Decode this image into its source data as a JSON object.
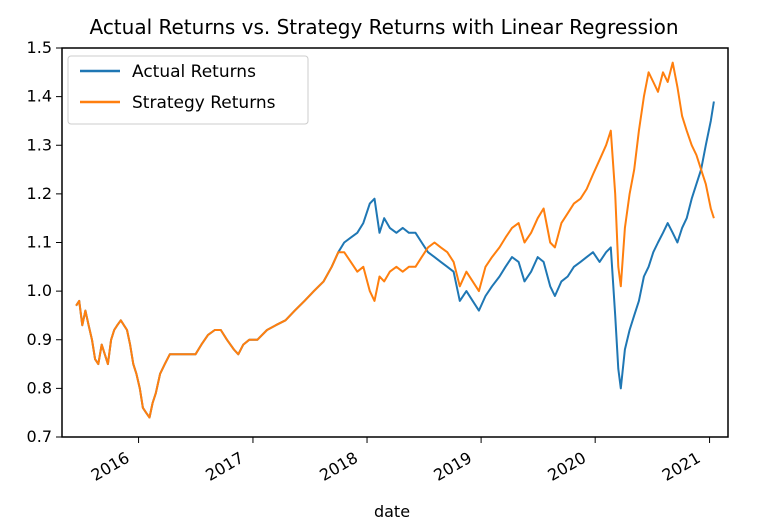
{
  "chart_data": {
    "type": "line",
    "title": "Actual Returns vs. Strategy Returns with Linear Regression",
    "xlabel": "date",
    "ylabel": "",
    "ylim": [
      0.7,
      1.5
    ],
    "xlim": [
      "2015-05-01",
      "2021-03-01"
    ],
    "y_ticks": [
      0.7,
      0.8,
      0.9,
      1.0,
      1.1,
      1.2,
      1.3,
      1.4,
      1.5
    ],
    "x_ticks": [
      {
        "label": "2016",
        "date": "2016-01-01"
      },
      {
        "label": "2017",
        "date": "2017-01-01"
      },
      {
        "label": "2018",
        "date": "2018-01-01"
      },
      {
        "label": "2019",
        "date": "2019-01-01"
      },
      {
        "label": "2020",
        "date": "2020-01-01"
      },
      {
        "label": "2021",
        "date": "2021-01-01"
      }
    ],
    "grid": false,
    "legend": "upper-left",
    "series": [
      {
        "name": "Actual Returns",
        "color": "#1f77b4",
        "points": [
          [
            "2015-06-15",
            0.97
          ],
          [
            "2015-06-25",
            0.98
          ],
          [
            "2015-07-05",
            0.93
          ],
          [
            "2015-07-15",
            0.96
          ],
          [
            "2015-07-25",
            0.93
          ],
          [
            "2015-08-05",
            0.9
          ],
          [
            "2015-08-15",
            0.86
          ],
          [
            "2015-08-25",
            0.85
          ],
          [
            "2015-09-05",
            0.89
          ],
          [
            "2015-09-15",
            0.87
          ],
          [
            "2015-09-25",
            0.85
          ],
          [
            "2015-10-05",
            0.9
          ],
          [
            "2015-10-15",
            0.92
          ],
          [
            "2015-10-25",
            0.93
          ],
          [
            "2015-11-05",
            0.94
          ],
          [
            "2015-11-15",
            0.93
          ],
          [
            "2015-11-25",
            0.92
          ],
          [
            "2015-12-05",
            0.89
          ],
          [
            "2015-12-15",
            0.85
          ],
          [
            "2015-12-25",
            0.83
          ],
          [
            "2016-01-05",
            0.8
          ],
          [
            "2016-01-15",
            0.76
          ],
          [
            "2016-01-25",
            0.75
          ],
          [
            "2016-02-05",
            0.74
          ],
          [
            "2016-02-15",
            0.77
          ],
          [
            "2016-02-25",
            0.79
          ],
          [
            "2016-03-10",
            0.83
          ],
          [
            "2016-03-25",
            0.85
          ],
          [
            "2016-04-10",
            0.87
          ],
          [
            "2016-05-01",
            0.87
          ],
          [
            "2016-06-01",
            0.87
          ],
          [
            "2016-07-01",
            0.87
          ],
          [
            "2016-07-20",
            0.89
          ],
          [
            "2016-08-10",
            0.91
          ],
          [
            "2016-09-01",
            0.92
          ],
          [
            "2016-09-20",
            0.92
          ],
          [
            "2016-10-10",
            0.9
          ],
          [
            "2016-11-01",
            0.88
          ],
          [
            "2016-11-15",
            0.87
          ],
          [
            "2016-12-01",
            0.89
          ],
          [
            "2016-12-20",
            0.9
          ],
          [
            "2017-01-15",
            0.9
          ],
          [
            "2017-02-15",
            0.92
          ],
          [
            "2017-03-15",
            0.93
          ],
          [
            "2017-04-15",
            0.94
          ],
          [
            "2017-05-15",
            0.96
          ],
          [
            "2017-06-15",
            0.98
          ],
          [
            "2017-07-15",
            1.0
          ],
          [
            "2017-08-15",
            1.02
          ],
          [
            "2017-09-10",
            1.05
          ],
          [
            "2017-10-01",
            1.08
          ],
          [
            "2017-10-20",
            1.1
          ],
          [
            "2017-11-10",
            1.11
          ],
          [
            "2017-12-01",
            1.12
          ],
          [
            "2017-12-20",
            1.14
          ],
          [
            "2018-01-10",
            1.18
          ],
          [
            "2018-01-25",
            1.19
          ],
          [
            "2018-02-10",
            1.12
          ],
          [
            "2018-02-25",
            1.15
          ],
          [
            "2018-03-15",
            1.13
          ],
          [
            "2018-04-05",
            1.12
          ],
          [
            "2018-04-25",
            1.13
          ],
          [
            "2018-05-15",
            1.12
          ],
          [
            "2018-06-05",
            1.12
          ],
          [
            "2018-06-25",
            1.1
          ],
          [
            "2018-07-15",
            1.08
          ],
          [
            "2018-08-05",
            1.07
          ],
          [
            "2018-08-25",
            1.06
          ],
          [
            "2018-09-15",
            1.05
          ],
          [
            "2018-10-05",
            1.04
          ],
          [
            "2018-10-25",
            0.98
          ],
          [
            "2018-11-15",
            1.0
          ],
          [
            "2018-12-05",
            0.98
          ],
          [
            "2018-12-25",
            0.96
          ],
          [
            "2019-01-15",
            0.99
          ],
          [
            "2019-02-05",
            1.01
          ],
          [
            "2019-03-01",
            1.03
          ],
          [
            "2019-03-20",
            1.05
          ],
          [
            "2019-04-10",
            1.07
          ],
          [
            "2019-05-01",
            1.06
          ],
          [
            "2019-05-20",
            1.02
          ],
          [
            "2019-06-10",
            1.04
          ],
          [
            "2019-07-01",
            1.07
          ],
          [
            "2019-07-20",
            1.06
          ],
          [
            "2019-08-10",
            1.01
          ],
          [
            "2019-08-25",
            0.99
          ],
          [
            "2019-09-15",
            1.02
          ],
          [
            "2019-10-05",
            1.03
          ],
          [
            "2019-10-25",
            1.05
          ],
          [
            "2019-11-15",
            1.06
          ],
          [
            "2019-12-05",
            1.07
          ],
          [
            "2019-12-25",
            1.08
          ],
          [
            "2020-01-15",
            1.06
          ],
          [
            "2020-02-05",
            1.08
          ],
          [
            "2020-02-20",
            1.09
          ],
          [
            "2020-03-05",
            0.95
          ],
          [
            "2020-03-15",
            0.84
          ],
          [
            "2020-03-23",
            0.8
          ],
          [
            "2020-04-05",
            0.88
          ],
          [
            "2020-04-20",
            0.92
          ],
          [
            "2020-05-05",
            0.95
          ],
          [
            "2020-05-20",
            0.98
          ],
          [
            "2020-06-05",
            1.03
          ],
          [
            "2020-06-20",
            1.05
          ],
          [
            "2020-07-05",
            1.08
          ],
          [
            "2020-07-20",
            1.1
          ],
          [
            "2020-08-05",
            1.12
          ],
          [
            "2020-08-20",
            1.14
          ],
          [
            "2020-09-05",
            1.12
          ],
          [
            "2020-09-20",
            1.1
          ],
          [
            "2020-10-05",
            1.13
          ],
          [
            "2020-10-20",
            1.15
          ],
          [
            "2020-11-05",
            1.19
          ],
          [
            "2020-11-20",
            1.22
          ],
          [
            "2020-12-05",
            1.25
          ],
          [
            "2020-12-20",
            1.3
          ],
          [
            "2021-01-05",
            1.35
          ],
          [
            "2021-01-15",
            1.39
          ]
        ]
      },
      {
        "name": "Strategy Returns",
        "color": "#ff7f0e",
        "points": [
          [
            "2015-06-15",
            0.97
          ],
          [
            "2015-06-25",
            0.98
          ],
          [
            "2015-07-05",
            0.93
          ],
          [
            "2015-07-15",
            0.96
          ],
          [
            "2015-07-25",
            0.93
          ],
          [
            "2015-08-05",
            0.9
          ],
          [
            "2015-08-15",
            0.86
          ],
          [
            "2015-08-25",
            0.85
          ],
          [
            "2015-09-05",
            0.89
          ],
          [
            "2015-09-15",
            0.87
          ],
          [
            "2015-09-25",
            0.85
          ],
          [
            "2015-10-05",
            0.9
          ],
          [
            "2015-10-15",
            0.92
          ],
          [
            "2015-10-25",
            0.93
          ],
          [
            "2015-11-05",
            0.94
          ],
          [
            "2015-11-15",
            0.93
          ],
          [
            "2015-11-25",
            0.92
          ],
          [
            "2015-12-05",
            0.89
          ],
          [
            "2015-12-15",
            0.85
          ],
          [
            "2015-12-25",
            0.83
          ],
          [
            "2016-01-05",
            0.8
          ],
          [
            "2016-01-15",
            0.76
          ],
          [
            "2016-01-25",
            0.75
          ],
          [
            "2016-02-05",
            0.74
          ],
          [
            "2016-02-15",
            0.77
          ],
          [
            "2016-02-25",
            0.79
          ],
          [
            "2016-03-10",
            0.83
          ],
          [
            "2016-03-25",
            0.85
          ],
          [
            "2016-04-10",
            0.87
          ],
          [
            "2016-05-01",
            0.87
          ],
          [
            "2016-06-01",
            0.87
          ],
          [
            "2016-07-01",
            0.87
          ],
          [
            "2016-07-20",
            0.89
          ],
          [
            "2016-08-10",
            0.91
          ],
          [
            "2016-09-01",
            0.92
          ],
          [
            "2016-09-20",
            0.92
          ],
          [
            "2016-10-10",
            0.9
          ],
          [
            "2016-11-01",
            0.88
          ],
          [
            "2016-11-15",
            0.87
          ],
          [
            "2016-12-01",
            0.89
          ],
          [
            "2016-12-20",
            0.9
          ],
          [
            "2017-01-15",
            0.9
          ],
          [
            "2017-02-15",
            0.92
          ],
          [
            "2017-03-15",
            0.93
          ],
          [
            "2017-04-15",
            0.94
          ],
          [
            "2017-05-15",
            0.96
          ],
          [
            "2017-06-15",
            0.98
          ],
          [
            "2017-07-15",
            1.0
          ],
          [
            "2017-08-15",
            1.02
          ],
          [
            "2017-09-10",
            1.05
          ],
          [
            "2017-10-01",
            1.08
          ],
          [
            "2017-10-20",
            1.08
          ],
          [
            "2017-11-10",
            1.06
          ],
          [
            "2017-12-01",
            1.04
          ],
          [
            "2017-12-20",
            1.05
          ],
          [
            "2018-01-10",
            1.0
          ],
          [
            "2018-01-25",
            0.98
          ],
          [
            "2018-02-10",
            1.03
          ],
          [
            "2018-02-25",
            1.02
          ],
          [
            "2018-03-15",
            1.04
          ],
          [
            "2018-04-05",
            1.05
          ],
          [
            "2018-04-25",
            1.04
          ],
          [
            "2018-05-15",
            1.05
          ],
          [
            "2018-06-05",
            1.05
          ],
          [
            "2018-06-25",
            1.07
          ],
          [
            "2018-07-15",
            1.09
          ],
          [
            "2018-08-05",
            1.1
          ],
          [
            "2018-08-25",
            1.09
          ],
          [
            "2018-09-15",
            1.08
          ],
          [
            "2018-10-05",
            1.06
          ],
          [
            "2018-10-25",
            1.01
          ],
          [
            "2018-11-15",
            1.04
          ],
          [
            "2018-12-05",
            1.02
          ],
          [
            "2018-12-25",
            1.0
          ],
          [
            "2019-01-15",
            1.05
          ],
          [
            "2019-02-05",
            1.07
          ],
          [
            "2019-03-01",
            1.09
          ],
          [
            "2019-03-20",
            1.11
          ],
          [
            "2019-04-10",
            1.13
          ],
          [
            "2019-05-01",
            1.14
          ],
          [
            "2019-05-20",
            1.1
          ],
          [
            "2019-06-10",
            1.12
          ],
          [
            "2019-07-01",
            1.15
          ],
          [
            "2019-07-20",
            1.17
          ],
          [
            "2019-08-10",
            1.1
          ],
          [
            "2019-08-25",
            1.09
          ],
          [
            "2019-09-15",
            1.14
          ],
          [
            "2019-10-05",
            1.16
          ],
          [
            "2019-10-25",
            1.18
          ],
          [
            "2019-11-15",
            1.19
          ],
          [
            "2019-12-05",
            1.21
          ],
          [
            "2019-12-25",
            1.24
          ],
          [
            "2020-01-15",
            1.27
          ],
          [
            "2020-02-05",
            1.3
          ],
          [
            "2020-02-20",
            1.33
          ],
          [
            "2020-03-05",
            1.2
          ],
          [
            "2020-03-15",
            1.05
          ],
          [
            "2020-03-23",
            1.01
          ],
          [
            "2020-04-05",
            1.13
          ],
          [
            "2020-04-20",
            1.2
          ],
          [
            "2020-05-05",
            1.25
          ],
          [
            "2020-05-20",
            1.33
          ],
          [
            "2020-06-05",
            1.4
          ],
          [
            "2020-06-20",
            1.45
          ],
          [
            "2020-07-05",
            1.43
          ],
          [
            "2020-07-20",
            1.41
          ],
          [
            "2020-08-05",
            1.45
          ],
          [
            "2020-08-20",
            1.43
          ],
          [
            "2020-09-05",
            1.47
          ],
          [
            "2020-09-20",
            1.42
          ],
          [
            "2020-10-05",
            1.36
          ],
          [
            "2020-10-20",
            1.33
          ],
          [
            "2020-11-05",
            1.3
          ],
          [
            "2020-11-20",
            1.28
          ],
          [
            "2020-12-05",
            1.25
          ],
          [
            "2020-12-20",
            1.22
          ],
          [
            "2021-01-05",
            1.17
          ],
          [
            "2021-01-15",
            1.15
          ]
        ]
      }
    ]
  }
}
